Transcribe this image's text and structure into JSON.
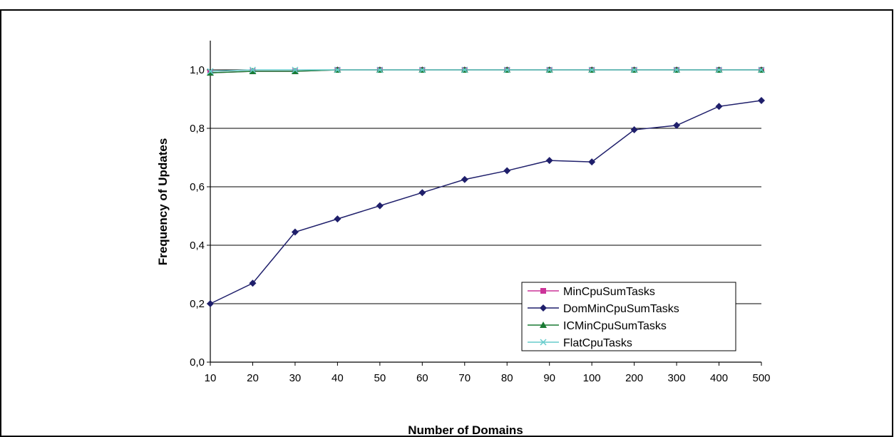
{
  "chart_data": {
    "type": "line",
    "title": "",
    "xlabel": "Number of Domains",
    "ylabel": "Frequency of Updates",
    "categories": [
      "10",
      "20",
      "30",
      "40",
      "50",
      "60",
      "70",
      "80",
      "90",
      "100",
      "200",
      "300",
      "400",
      "500"
    ],
    "y_ticks": [
      "0,0",
      "0,2",
      "0,4",
      "0,6",
      "0,8",
      "1,0"
    ],
    "ylim": [
      0,
      1.1
    ],
    "grid": "horizontal",
    "legend_position": "bottom-right",
    "series": [
      {
        "name": "MinCpuSumTasks",
        "color": "#cc3399",
        "marker": "square",
        "values": [
          0.99,
          0.995,
          0.995,
          1.0,
          1.0,
          1.0,
          1.0,
          1.0,
          1.0,
          1.0,
          1.0,
          1.0,
          1.0,
          1.0
        ]
      },
      {
        "name": "DomMinCpuSumTasks",
        "color": "#1f1f6b",
        "marker": "diamond",
        "values": [
          0.2,
          0.27,
          0.445,
          0.49,
          0.535,
          0.58,
          0.625,
          0.655,
          0.69,
          0.685,
          0.795,
          0.81,
          0.875,
          0.895
        ]
      },
      {
        "name": "ICMinCpuSumTasks",
        "color": "#1a7a33",
        "marker": "triangle",
        "values": [
          0.99,
          0.995,
          0.995,
          1.0,
          1.0,
          1.0,
          1.0,
          1.0,
          1.0,
          1.0,
          1.0,
          1.0,
          1.0,
          1.0
        ]
      },
      {
        "name": "FlatCpuTasks",
        "color": "#66cccc",
        "marker": "x",
        "values": [
          0.995,
          1.0,
          1.0,
          1.0,
          1.0,
          1.0,
          1.0,
          1.0,
          1.0,
          1.0,
          1.0,
          1.0,
          1.0,
          1.0
        ]
      }
    ]
  }
}
